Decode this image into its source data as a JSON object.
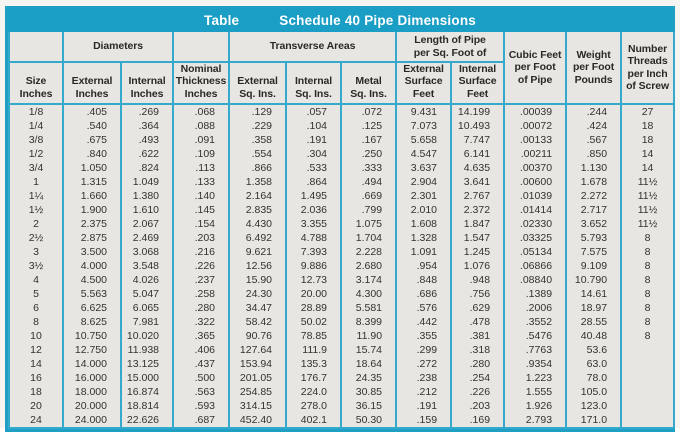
{
  "colors": {
    "accent": "#1a9ec5",
    "grid": "#35a9cb",
    "cell_background": "#e7e6e2",
    "title_text": "#ffffff",
    "body_text": "#333230"
  },
  "title": {
    "word": "Table",
    "text": "Schedule 40 Pipe Dimensions"
  },
  "table": {
    "group_headers": {
      "diameters": "Diameters",
      "transverse_areas": "Transverse Areas",
      "length_of_pipe": "Length of Pipe\nper Sq. Foot of"
    },
    "column_headers": {
      "size": "Size\nInches",
      "external_inches": "External\nInches",
      "internal_inches": "Internal\nInches",
      "nominal_thickness": "Nominal\nThickness\nInches",
      "external_sq_ins": "External\nSq. Ins.",
      "internal_sq_ins": "Internal\nSq. Ins.",
      "metal_sq_ins": "Metal\nSq. Ins.",
      "external_surface_feet": "External\nSurface\nFeet",
      "internal_surface_feet": "Internal\nSurface\nFeet",
      "cubic_feet": "Cubic Feet\nper Foot\nof Pipe",
      "weight": "Weight\nper Foot\nPounds",
      "threads": "Number\nThreads\nper Inch\nof Screw"
    },
    "column_keys": [
      "size",
      "external_inches",
      "internal_inches",
      "nominal_thickness",
      "external_sq_ins",
      "internal_sq_ins",
      "metal_sq_ins",
      "external_surface_feet",
      "internal_surface_feet",
      "cubic_feet",
      "weight",
      "threads"
    ],
    "rows": [
      [
        "1/8",
        ".405",
        ".269",
        ".068",
        ".129",
        ".057",
        ".072",
        "9.431",
        "14.199",
        ".00039",
        ".244",
        "27"
      ],
      [
        "1/4",
        ".540",
        ".364",
        ".088",
        ".229",
        ".104",
        ".125",
        "7.073",
        "10.493",
        ".00072",
        ".424",
        "18"
      ],
      [
        "3/8",
        ".675",
        ".493",
        ".091",
        ".358",
        ".191",
        ".167",
        "5.658",
        "7.747",
        ".00133",
        ".567",
        "18"
      ],
      [
        "1/2",
        ".840",
        ".622",
        ".109",
        ".554",
        ".304",
        ".250",
        "4.547",
        "6.141",
        ".00211",
        ".850",
        "14"
      ],
      [
        "3/4",
        "1.050",
        ".824",
        ".113",
        ".866",
        ".533",
        ".333",
        "3.637",
        "4.635",
        ".00370",
        "1.130",
        "14"
      ],
      [
        "1",
        "1.315",
        "1.049",
        ".133",
        "1.358",
        ".864",
        ".494",
        "2.904",
        "3.641",
        ".00600",
        "1.678",
        "11½"
      ],
      [
        "1¼",
        "1.660",
        "1.380",
        ".140",
        "2.164",
        "1.495",
        ".669",
        "2.301",
        "2.767",
        ".01039",
        "2.272",
        "11½"
      ],
      [
        "1½",
        "1.900",
        "1.610",
        ".145",
        "2.835",
        "2.036",
        ".799",
        "2.010",
        "2.372",
        ".01414",
        "2.717",
        "11½"
      ],
      [
        "2",
        "2.375",
        "2.067",
        ".154",
        "4.430",
        "3.355",
        "1.075",
        "1.608",
        "1.847",
        ".02330",
        "3.652",
        "11½"
      ],
      [
        "2½",
        "2.875",
        "2.469",
        ".203",
        "6.492",
        "4.788",
        "1.704",
        "1.328",
        "1.547",
        ".03325",
        "5.793",
        "8"
      ],
      [
        "3",
        "3.500",
        "3.068",
        ".216",
        "9.621",
        "7.393",
        "2.228",
        "1.091",
        "1.245",
        ".05134",
        "7.575",
        "8"
      ],
      [
        "3½",
        "4.000",
        "3.548",
        ".226",
        "12.56",
        "9.886",
        "2.680",
        ".954",
        "1.076",
        ".06866",
        "9.109",
        "8"
      ],
      [
        "4",
        "4.500",
        "4.026",
        ".237",
        "15.90",
        "12.73",
        "3.174",
        ".848",
        ".948",
        ".08840",
        "10.790",
        "8"
      ],
      [
        "5",
        "5.563",
        "5.047",
        ".258",
        "24.30",
        "20.00",
        "4.300",
        ".686",
        ".756",
        ".1389",
        "14.61",
        "8"
      ],
      [
        "6",
        "6.625",
        "6.065",
        ".280",
        "34.47",
        "28.89",
        "5.581",
        ".576",
        ".629",
        ".2006",
        "18.97",
        "8"
      ],
      [
        "8",
        "8.625",
        "7.981",
        ".322",
        "58.42",
        "50.02",
        "8.399",
        ".442",
        ".478",
        ".3552",
        "28.55",
        "8"
      ],
      [
        "10",
        "10.750",
        "10.020",
        ".365",
        "90.76",
        "78.85",
        "11.90",
        ".355",
        ".381",
        ".5476",
        "40.48",
        "8"
      ],
      [
        "12",
        "12.750",
        "11.938",
        ".406",
        "127.64",
        "111.9",
        "15.74",
        ".299",
        ".318",
        ".7763",
        "53.6",
        ""
      ],
      [
        "14",
        "14.000",
        "13.125",
        ".437",
        "153.94",
        "135.3",
        "18.64",
        ".272",
        ".280",
        ".9354",
        "63.0",
        ""
      ],
      [
        "16",
        "16.000",
        "15.000",
        ".500",
        "201.05",
        "176.7",
        "24.35",
        ".238",
        ".254",
        "1.223",
        "78.0",
        ""
      ],
      [
        "18",
        "18.000",
        "16.874",
        ".563",
        "254.85",
        "224.0",
        "30.85",
        ".212",
        ".226",
        "1.555",
        "105.0",
        ""
      ],
      [
        "20",
        "20.000",
        "18.814",
        ".593",
        "314.15",
        "278.0",
        "36.15",
        ".191",
        ".203",
        "1.926",
        "123.0",
        ""
      ],
      [
        "24",
        "24.000",
        "22.626",
        ".687",
        "452.40",
        "402.1",
        "50.30",
        ".159",
        ".169",
        "2.793",
        "171.0",
        ""
      ]
    ]
  }
}
